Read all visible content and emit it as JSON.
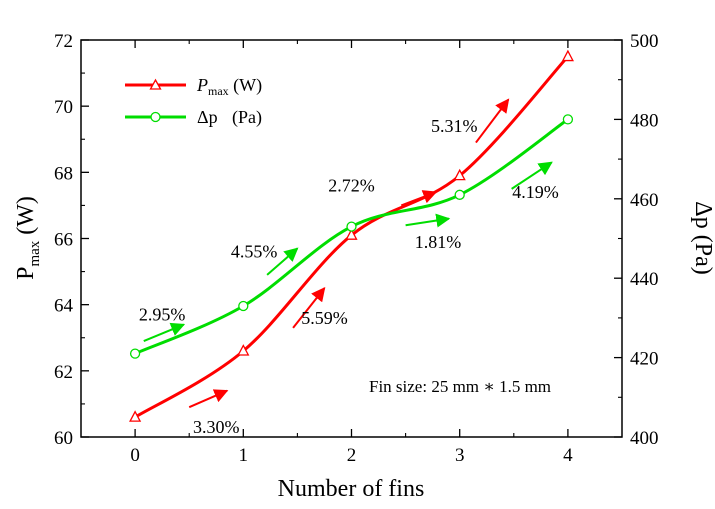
{
  "chart_data": {
    "type": "line",
    "xlabel": "Number of fins",
    "x": [
      0,
      1,
      2,
      3,
      4
    ],
    "xticks": [
      "0",
      "1",
      "2",
      "3",
      "4"
    ],
    "xlim": [
      -0.5,
      4.5
    ],
    "ylabel_left": {
      "main": "P",
      "sub": "max",
      "unit": " (W)"
    },
    "ylabel_right": "Δp (Pa)",
    "ylim_left": [
      60,
      72
    ],
    "yticks_left": [
      "60",
      "62",
      "64",
      "66",
      "68",
      "70",
      "72"
    ],
    "ylim_right": [
      400,
      500
    ],
    "yticks_right": [
      "400",
      "420",
      "440",
      "460",
      "480",
      "500"
    ],
    "grid": false,
    "legend_position": "top-left",
    "series": [
      {
        "name_main": "P",
        "name_sub": "max",
        "name_unit": " (W)",
        "axis": "left",
        "marker": "triangle",
        "color": "#ff0000",
        "values": [
          60.6,
          62.6,
          66.1,
          67.9,
          71.5
        ]
      },
      {
        "name_main": "Δp",
        "name_unit": "(Pa)",
        "axis": "right",
        "marker": "circle",
        "color": "#00dd00",
        "values": [
          421,
          433,
          453,
          461,
          480
        ]
      }
    ],
    "annotations": [
      {
        "text": "3.30%",
        "color": "#ff0000",
        "x": 0.75,
        "y": 60.3,
        "arrow": [
          [
            0.5,
            60.9
          ],
          [
            0.85,
            61.4
          ]
        ]
      },
      {
        "text": "2.95%",
        "color": "#00dd00",
        "x": 0.25,
        "y": 63.7,
        "arrow": [
          [
            0.08,
            62.9
          ],
          [
            0.45,
            63.4
          ]
        ]
      },
      {
        "text": "5.59%",
        "color": "#ff0000",
        "x": 1.75,
        "y": 63.6,
        "arrow": [
          [
            1.46,
            63.3
          ],
          [
            1.75,
            64.5
          ]
        ]
      },
      {
        "text": "4.55%",
        "color": "#00dd00",
        "x": 1.1,
        "y": 65.6,
        "arrow": [
          [
            1.22,
            64.9
          ],
          [
            1.5,
            65.7
          ]
        ]
      },
      {
        "text": "2.72%",
        "color": "#ff0000",
        "x": 2.0,
        "y": 67.6,
        "arrow": [
          [
            2.46,
            67.0
          ],
          [
            2.78,
            67.4
          ]
        ]
      },
      {
        "text": "1.81%",
        "color": "#00dd00",
        "x": 2.8,
        "y": 65.9,
        "arrow": [
          [
            2.5,
            66.4
          ],
          [
            2.9,
            66.6
          ]
        ]
      },
      {
        "text": "5.31%",
        "color": "#ff0000",
        "x": 2.95,
        "y": 69.4,
        "arrow": [
          [
            3.15,
            68.9
          ],
          [
            3.45,
            70.2
          ]
        ]
      },
      {
        "text": "4.19%",
        "color": "#00dd00",
        "x": 3.7,
        "y": 67.4,
        "arrow": [
          [
            3.48,
            67.5
          ],
          [
            3.85,
            68.3
          ]
        ]
      }
    ],
    "note": "Fin size: 25 mm ∗ 1.5 mm"
  }
}
